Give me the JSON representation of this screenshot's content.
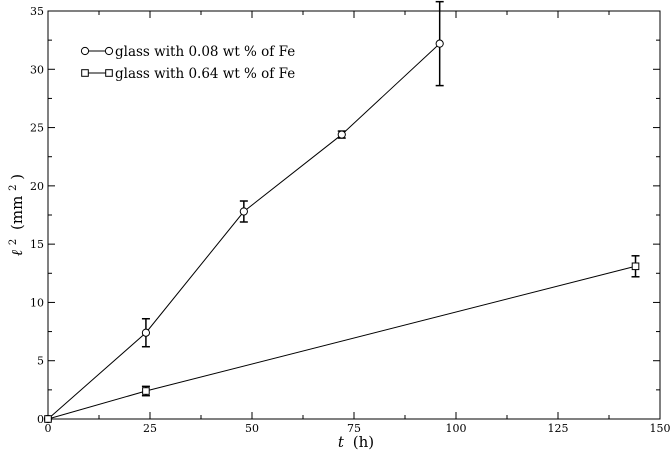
{
  "chart_data": {
    "type": "line",
    "x": [
      0,
      24,
      48,
      72,
      96,
      144
    ],
    "xlim": [
      0,
      150
    ],
    "ylim": [
      0,
      35
    ],
    "xticks": [
      "0",
      "25",
      "50",
      "75",
      "100",
      "125",
      "150"
    ],
    "yticks": [
      "0",
      "5",
      "10",
      "15",
      "20",
      "25",
      "30",
      "35"
    ],
    "xlabel": {
      "symbol": "t",
      "unit": "(h)"
    },
    "ylabel": {
      "symbol": "ℓ",
      "sup": "2",
      "unit_open": "(mm",
      "unit_sup": "2",
      "unit_close": ")"
    },
    "legend_position": "top-left",
    "grid": false,
    "series": [
      {
        "name": "glass with 0.08 wt % of Fe",
        "marker": "circle",
        "points": [
          {
            "x": 0,
            "y": 0,
            "err": 0
          },
          {
            "x": 24,
            "y": 7.4,
            "err": 1.2
          },
          {
            "x": 48,
            "y": 17.8,
            "err": 0.9
          },
          {
            "x": 72,
            "y": 24.4,
            "err": 0.3
          },
          {
            "x": 96,
            "y": 32.2,
            "err": 3.6
          }
        ]
      },
      {
        "name": "glass with 0.64 wt % of Fe",
        "marker": "square",
        "points": [
          {
            "x": 0,
            "y": 0,
            "err": 0
          },
          {
            "x": 24,
            "y": 2.4,
            "err": 0.4
          },
          {
            "x": 144,
            "y": 13.1,
            "err": 0.9
          }
        ]
      }
    ],
    "colors": {
      "line": "#000000",
      "background": "#ffffff"
    }
  }
}
